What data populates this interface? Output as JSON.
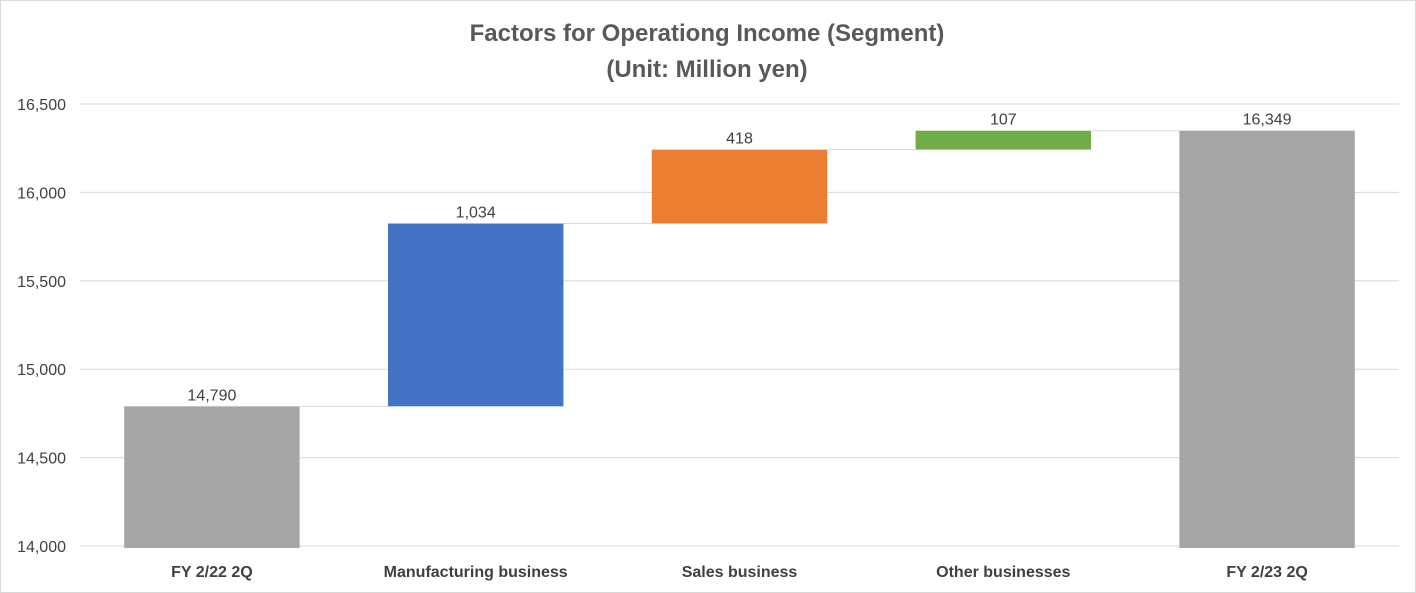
{
  "chart_data": {
    "type": "bar",
    "subtype": "waterfall",
    "title": "Factors for Operationg Income (Segment)",
    "subtitle": "(Unit: Million yen)",
    "categories": [
      "FY 2/22 2Q",
      "Manufacturing business",
      "Sales business",
      "Other businesses",
      "FY 2/23 2Q"
    ],
    "values": [
      14790,
      1034,
      418,
      107,
      16349
    ],
    "bar_kind": [
      "total",
      "increase",
      "increase",
      "increase",
      "total"
    ],
    "data_labels": [
      "14,790",
      "1,034",
      "418",
      "107",
      "16,349"
    ],
    "colors": [
      "#a5a5a5",
      "#4472c4",
      "#ed7d31",
      "#70ad47",
      "#a5a5a5"
    ],
    "ylim": [
      14000,
      16500
    ],
    "yticks": [
      14000,
      14500,
      15000,
      15500,
      16000,
      16500
    ],
    "ytick_labels": [
      "14,000",
      "14,500",
      "15,000",
      "15,500",
      "16,000",
      "16,500"
    ],
    "xlabel": "",
    "ylabel": "",
    "grid": true,
    "connector_lines": true,
    "legend": "none"
  }
}
